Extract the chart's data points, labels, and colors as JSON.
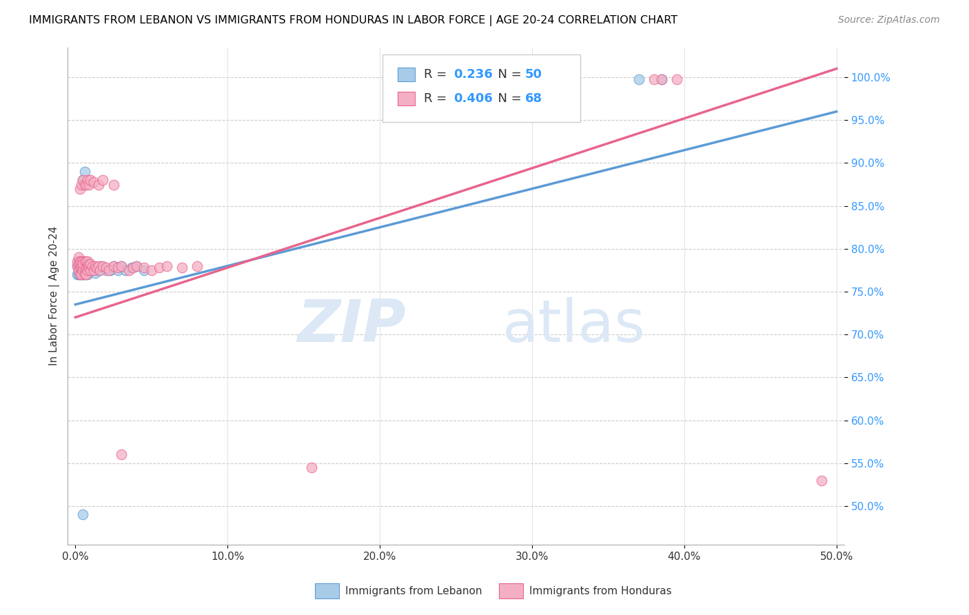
{
  "title": "IMMIGRANTS FROM LEBANON VS IMMIGRANTS FROM HONDURAS IN LABOR FORCE | AGE 20-24 CORRELATION CHART",
  "source": "Source: ZipAtlas.com",
  "ylabel": "In Labor Force | Age 20-24",
  "x_tick_vals": [
    0.0,
    0.1,
    0.2,
    0.3,
    0.4,
    0.5
  ],
  "y_tick_vals": [
    0.5,
    0.55,
    0.6,
    0.65,
    0.7,
    0.75,
    0.8,
    0.85,
    0.9,
    0.95,
    1.0
  ],
  "xlim": [
    -0.005,
    0.505
  ],
  "ylim": [
    0.455,
    1.035
  ],
  "lebanon_R": 0.236,
  "lebanon_N": 50,
  "honduras_R": 0.406,
  "honduras_N": 68,
  "legend_label_lebanon": "Immigrants from Lebanon",
  "legend_label_honduras": "Immigrants from Honduras",
  "color_lebanon": "#a8cce8",
  "color_honduras": "#f4afc4",
  "edge_color_lebanon": "#5b9bd5",
  "edge_color_honduras": "#e8648c",
  "line_color_lebanon": "#5b9bd5",
  "line_color_honduras": "#e8648c",
  "watermark_zip": "ZIP",
  "watermark_atlas": "atlas",
  "watermark_color": "#dce8f5",
  "leb_x": [
    0.001,
    0.001,
    0.002,
    0.002,
    0.002,
    0.002,
    0.003,
    0.003,
    0.003,
    0.003,
    0.004,
    0.004,
    0.004,
    0.004,
    0.005,
    0.005,
    0.005,
    0.005,
    0.005,
    0.005,
    0.006,
    0.006,
    0.006,
    0.007,
    0.007,
    0.008,
    0.008,
    0.008,
    0.009,
    0.01,
    0.01,
    0.011,
    0.012,
    0.013,
    0.015,
    0.017,
    0.02,
    0.023,
    0.025,
    0.028,
    0.03,
    0.033,
    0.037,
    0.04,
    0.045,
    0.005,
    0.006,
    0.37,
    0.385,
    0.005
  ],
  "leb_y": [
    0.77,
    0.78,
    0.775,
    0.782,
    0.77,
    0.785,
    0.775,
    0.78,
    0.77,
    0.785,
    0.775,
    0.78,
    0.77,
    0.785,
    0.775,
    0.78,
    0.77,
    0.785,
    0.778,
    0.772,
    0.775,
    0.78,
    0.77,
    0.775,
    0.78,
    0.775,
    0.78,
    0.77,
    0.775,
    0.775,
    0.78,
    0.775,
    0.778,
    0.772,
    0.775,
    0.78,
    0.775,
    0.775,
    0.78,
    0.775,
    0.78,
    0.775,
    0.778,
    0.78,
    0.775,
    0.88,
    0.89,
    0.998,
    0.998,
    0.49
  ],
  "hon_x": [
    0.001,
    0.001,
    0.002,
    0.002,
    0.002,
    0.003,
    0.003,
    0.003,
    0.003,
    0.004,
    0.004,
    0.004,
    0.005,
    0.005,
    0.005,
    0.005,
    0.006,
    0.006,
    0.006,
    0.007,
    0.007,
    0.007,
    0.008,
    0.008,
    0.008,
    0.009,
    0.009,
    0.01,
    0.01,
    0.011,
    0.012,
    0.013,
    0.014,
    0.015,
    0.016,
    0.018,
    0.02,
    0.022,
    0.025,
    0.028,
    0.03,
    0.035,
    0.038,
    0.04,
    0.045,
    0.05,
    0.055,
    0.06,
    0.07,
    0.08,
    0.003,
    0.004,
    0.005,
    0.006,
    0.007,
    0.008,
    0.009,
    0.01,
    0.012,
    0.015,
    0.018,
    0.025,
    0.03,
    0.155,
    0.38,
    0.385,
    0.395,
    0.49
  ],
  "hon_y": [
    0.78,
    0.785,
    0.775,
    0.782,
    0.79,
    0.778,
    0.782,
    0.77,
    0.785,
    0.778,
    0.785,
    0.77,
    0.778,
    0.785,
    0.775,
    0.782,
    0.775,
    0.785,
    0.77,
    0.778,
    0.785,
    0.77,
    0.78,
    0.775,
    0.785,
    0.778,
    0.782,
    0.775,
    0.782,
    0.78,
    0.775,
    0.78,
    0.778,
    0.78,
    0.775,
    0.78,
    0.778,
    0.775,
    0.78,
    0.778,
    0.78,
    0.775,
    0.778,
    0.78,
    0.778,
    0.775,
    0.778,
    0.78,
    0.778,
    0.78,
    0.87,
    0.875,
    0.88,
    0.875,
    0.875,
    0.88,
    0.875,
    0.88,
    0.878,
    0.875,
    0.88,
    0.875,
    0.56,
    0.545,
    0.998,
    0.998,
    0.998,
    0.53
  ],
  "leb_line_x": [
    0.0,
    0.5
  ],
  "leb_line_y": [
    0.735,
    0.96
  ],
  "hon_line_x": [
    0.0,
    0.5
  ],
  "hon_line_y": [
    0.72,
    1.01
  ]
}
